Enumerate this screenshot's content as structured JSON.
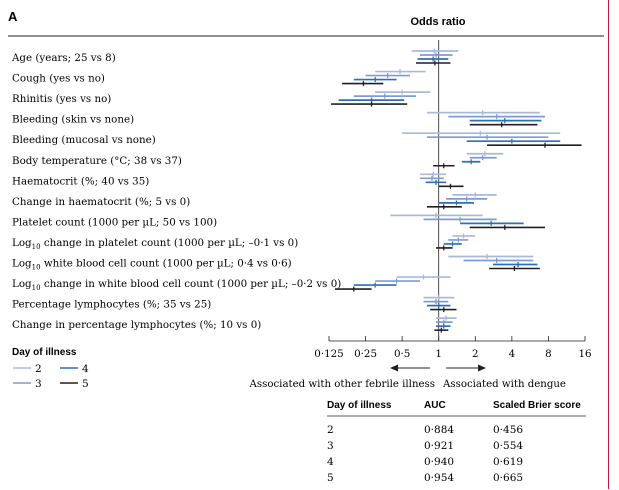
{
  "panel_label": "A",
  "colors": {
    "day2": "#a9b9db",
    "day3": "#7f9bd0",
    "day4": "#2f6fb4",
    "day5": "#231f20",
    "frame": "#c9163b"
  },
  "chart_data": {
    "type": "forest",
    "title": "Odds ratio",
    "x_scale": "log2",
    "xlim": [
      0.125,
      16
    ],
    "x_ticks": [
      "0·125",
      "0·25",
      "0·5",
      "1",
      "2",
      "4",
      "8",
      "16"
    ],
    "x_tick_values": [
      0.125,
      0.25,
      0.5,
      1,
      2,
      4,
      8,
      16
    ],
    "reference_line": 1,
    "direction_labels": {
      "left": "Associated with other febrile illness",
      "right": "Associated with dengue"
    },
    "rows": [
      {
        "label": "Age (years; 25 vs 8)",
        "estimates": [
          {
            "day": "2",
            "or": 0.92,
            "ci": [
              0.6,
              1.45
            ]
          },
          {
            "day": "3",
            "or": 0.95,
            "ci": [
              0.7,
              1.3
            ]
          },
          {
            "day": "4",
            "or": 0.9,
            "ci": [
              0.67,
              1.2
            ]
          },
          {
            "day": "5",
            "or": 0.93,
            "ci": [
              0.65,
              1.25
            ]
          }
        ]
      },
      {
        "label": "Cough (yes vs no)",
        "estimates": [
          {
            "day": "2",
            "or": 0.48,
            "ci": [
              0.3,
              0.78
            ]
          },
          {
            "day": "3",
            "or": 0.38,
            "ci": [
              0.25,
              0.58
            ]
          },
          {
            "day": "4",
            "or": 0.3,
            "ci": [
              0.2,
              0.45
            ]
          },
          {
            "day": "5",
            "or": 0.24,
            "ci": [
              0.16,
              0.35
            ]
          }
        ]
      },
      {
        "label": "Rhinitis (yes vs no)",
        "estimates": [
          {
            "day": "2",
            "or": 0.5,
            "ci": [
              0.3,
              0.85
            ]
          },
          {
            "day": "3",
            "or": 0.36,
            "ci": [
              0.2,
              0.65
            ]
          },
          {
            "day": "4",
            "or": 0.28,
            "ci": [
              0.15,
              0.52
            ]
          },
          {
            "day": "5",
            "or": 0.28,
            "ci": [
              0.13,
              0.55
            ]
          }
        ]
      },
      {
        "label": "Bleeding (skin vs none)",
        "estimates": [
          {
            "day": "2",
            "or": 2.3,
            "ci": [
              0.8,
              6.8
            ]
          },
          {
            "day": "3",
            "or": 3.0,
            "ci": [
              1.2,
              7.5
            ]
          },
          {
            "day": "4",
            "or": 3.5,
            "ci": [
              1.8,
              7.0
            ]
          },
          {
            "day": "5",
            "or": 3.3,
            "ci": [
              1.8,
              6.5
            ]
          }
        ]
      },
      {
        "label": "Bleeding (mucosal vs none)",
        "estimates": [
          {
            "day": "2",
            "or": 2.2,
            "ci": [
              0.5,
              10
            ]
          },
          {
            "day": "3",
            "or": 2.5,
            "ci": [
              0.8,
              8
            ]
          },
          {
            "day": "4",
            "or": 4.0,
            "ci": [
              1.7,
              10
            ]
          },
          {
            "day": "5",
            "or": 7.5,
            "ci": [
              2.5,
              15
            ]
          }
        ]
      },
      {
        "label": "Body temperature (°C; 38 vs 37)",
        "estimates": [
          {
            "day": "2",
            "or": 2.4,
            "ci": [
              1.7,
              3.4
            ]
          },
          {
            "day": "3",
            "or": 2.3,
            "ci": [
              1.8,
              3.0
            ]
          },
          {
            "day": "4",
            "or": 1.85,
            "ci": [
              1.55,
              2.2
            ]
          },
          {
            "day": "5",
            "or": 1.1,
            "ci": [
              0.9,
              1.35
            ]
          }
        ]
      },
      {
        "label": "Haematocrit (%; 40 vs 35)",
        "estimates": [
          {
            "day": "2",
            "or": 0.9,
            "ci": [
              0.7,
              1.15
            ]
          },
          {
            "day": "3",
            "or": 0.88,
            "ci": [
              0.7,
              1.1
            ]
          },
          {
            "day": "4",
            "or": 0.95,
            "ci": [
              0.78,
              1.15
            ]
          },
          {
            "day": "5",
            "or": 1.25,
            "ci": [
              1.0,
              1.6
            ]
          }
        ]
      },
      {
        "label": "Change in haematocrit (%; 5 vs 0)",
        "estimates": [
          {
            "day": "2",
            "or": 2.0,
            "ci": [
              1.3,
              3.0
            ]
          },
          {
            "day": "3",
            "or": 1.7,
            "ci": [
              1.15,
              2.5
            ]
          },
          {
            "day": "4",
            "or": 1.4,
            "ci": [
              1.0,
              1.95
            ]
          },
          {
            "day": "5",
            "or": 1.1,
            "ci": [
              0.8,
              1.55
            ]
          }
        ]
      },
      {
        "label": "Platelet count (1000 per µL; 50 vs 100)",
        "estimates": [
          {
            "day": "2",
            "or": 0.95,
            "ci": [
              0.4,
              2.3
            ]
          },
          {
            "day": "3",
            "or": 1.5,
            "ci": [
              0.75,
              3.0
            ]
          },
          {
            "day": "4",
            "or": 2.7,
            "ci": [
              1.5,
              5.0
            ]
          },
          {
            "day": "5",
            "or": 3.5,
            "ci": [
              1.8,
              7.5
            ]
          }
        ]
      },
      {
        "label": "Log10 change in platelet count (1000 per µL; –0·1 vs 0)",
        "estimates": [
          {
            "day": "2",
            "or": 1.6,
            "ci": [
              1.3,
              2.0
            ]
          },
          {
            "day": "3",
            "or": 1.45,
            "ci": [
              1.2,
              1.75
            ]
          },
          {
            "day": "4",
            "or": 1.3,
            "ci": [
              1.1,
              1.55
            ]
          },
          {
            "day": "5",
            "or": 1.1,
            "ci": [
              0.95,
              1.3
            ]
          }
        ]
      },
      {
        "label": "Log10 white blood cell count (1000 per µL; 0·4 vs 0·6)",
        "estimates": [
          {
            "day": "2",
            "or": 2.5,
            "ci": [
              1.2,
              6.0
            ]
          },
          {
            "day": "3",
            "or": 3.0,
            "ci": [
              1.6,
              6.0
            ]
          },
          {
            "day": "4",
            "or": 4.5,
            "ci": [
              2.8,
              6.5
            ]
          },
          {
            "day": "5",
            "or": 4.2,
            "ci": [
              2.6,
              6.8
            ]
          }
        ]
      },
      {
        "label": "Log10 change in white blood cell count (1000 per µL; –0·2 vs 0)",
        "estimates": [
          {
            "day": "2",
            "or": 0.75,
            "ci": [
              0.45,
              1.25
            ]
          },
          {
            "day": "3",
            "or": 0.45,
            "ci": [
              0.3,
              0.7
            ]
          },
          {
            "day": "4",
            "or": 0.3,
            "ci": [
              0.2,
              0.45
            ]
          },
          {
            "day": "5",
            "or": 0.2,
            "ci": [
              0.14,
              0.28
            ]
          }
        ]
      },
      {
        "label": "Percentage lymphocytes (%; 35 vs 25)",
        "estimates": [
          {
            "day": "2",
            "or": 1.0,
            "ci": [
              0.75,
              1.35
            ]
          },
          {
            "day": "3",
            "or": 0.95,
            "ci": [
              0.75,
              1.2
            ]
          },
          {
            "day": "4",
            "or": 1.0,
            "ci": [
              0.8,
              1.25
            ]
          },
          {
            "day": "5",
            "or": 1.1,
            "ci": [
              0.85,
              1.4
            ]
          }
        ]
      },
      {
        "label": "Change in percentage lymphocytes (%; 10 vs 0)",
        "estimates": [
          {
            "day": "2",
            "or": 1.15,
            "ci": [
              0.95,
              1.4
            ]
          },
          {
            "day": "3",
            "or": 1.1,
            "ci": [
              0.95,
              1.3
            ]
          },
          {
            "day": "4",
            "or": 1.1,
            "ci": [
              0.95,
              1.25
            ]
          },
          {
            "day": "5",
            "or": 1.05,
            "ci": [
              0.92,
              1.2
            ]
          }
        ]
      }
    ]
  },
  "row_labels": [
    {
      "main": "Age (years; 25 vs 8)"
    },
    {
      "main": "Cough (yes vs no)"
    },
    {
      "main": "Rhinitis (yes vs no)"
    },
    {
      "main": "Bleeding (skin vs none)"
    },
    {
      "main": "Bleeding (mucosal vs none)"
    },
    {
      "main": "Body temperature (°C; 38 vs 37)"
    },
    {
      "main": "Haematocrit (%; 40 vs 35)"
    },
    {
      "main": "Change in haematocrit (%; 5 vs 0)"
    },
    {
      "main": "Platelet count (1000 per µL; 50 vs 100)"
    },
    {
      "prefix": "Log",
      "sub": "10",
      "rest": " change in platelet count (1000 per µL; –0·1 vs 0)"
    },
    {
      "prefix": "Log",
      "sub": "10",
      "rest": " white blood cell count (1000 per µL; 0·4 vs 0·6)"
    },
    {
      "prefix": "Log",
      "sub": "10",
      "rest": " change in white blood cell count (1000 per µL; –0·2 vs 0)"
    },
    {
      "main": "Percentage lymphocytes (%; 35 vs 25)"
    },
    {
      "main": "Change in percentage lymphocytes (%; 10 vs 0)"
    }
  ],
  "legend": {
    "title": "Day of illness",
    "items": [
      "2",
      "3",
      "4",
      "5"
    ]
  },
  "performance_table": {
    "headers": [
      "Day of illness",
      "AUC",
      "Scaled Brier score"
    ],
    "rows": [
      [
        "2",
        "0·884",
        "0·456"
      ],
      [
        "3",
        "0·921",
        "0·554"
      ],
      [
        "4",
        "0·940",
        "0·619"
      ],
      [
        "5",
        "0·954",
        "0·665"
      ]
    ]
  }
}
